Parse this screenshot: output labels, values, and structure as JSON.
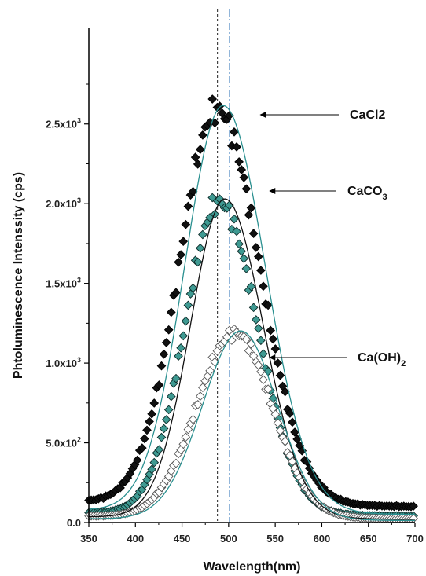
{
  "chart_data": {
    "type": "scatter",
    "xlabel": "Wavelength(nm)",
    "ylabel": "Phtoluminescence Intenssity (cps)",
    "xlim": [
      350,
      700
    ],
    "ylim": [
      0,
      3100
    ],
    "x_ticks": [
      350,
      400,
      450,
      500,
      550,
      600,
      650,
      700
    ],
    "y_ticks": [
      {
        "value": 0,
        "mantissa": "0.0",
        "exp": ""
      },
      {
        "value": 500,
        "mantissa": "5.0x10",
        "exp": "2"
      },
      {
        "value": 1000,
        "mantissa": "1.0x10",
        "exp": "3"
      },
      {
        "value": 1500,
        "mantissa": "1.5x10",
        "exp": "3"
      },
      {
        "value": 2000,
        "mantissa": "2.0x10",
        "exp": "3"
      },
      {
        "value": 2500,
        "mantissa": "2.5x10",
        "exp": "3"
      }
    ],
    "reference_lines": [
      {
        "x": 488,
        "style": "dotted",
        "color": "#333333"
      },
      {
        "x": 501,
        "style": "dash-dot",
        "color": "#2a6fb5"
      }
    ],
    "series": [
      {
        "name": "CaCl2",
        "label_main": "CaCl2",
        "label_sub": "",
        "marker": "diamond-filled",
        "color": "#111111",
        "peak_wavelength": 488,
        "peak_intensity": 2590,
        "baseline_start": 130,
        "baseline_end": 100,
        "width_left": 58,
        "width_right": 64,
        "fit_color": "#2a9090",
        "points": [
          [
            350,
            130
          ],
          [
            360,
            185
          ],
          [
            370,
            260
          ],
          [
            380,
            370
          ],
          [
            390,
            520
          ],
          [
            400,
            700
          ],
          [
            410,
            920
          ],
          [
            420,
            1180
          ],
          [
            430,
            1460
          ],
          [
            440,
            1750
          ],
          [
            450,
            2030
          ],
          [
            460,
            2280
          ],
          [
            470,
            2470
          ],
          [
            480,
            2570
          ],
          [
            488,
            2590
          ],
          [
            495,
            2570
          ],
          [
            500,
            2530
          ],
          [
            510,
            2420
          ],
          [
            520,
            2260
          ],
          [
            530,
            2060
          ],
          [
            540,
            1840
          ],
          [
            550,
            1610
          ],
          [
            560,
            1380
          ],
          [
            570,
            1160
          ],
          [
            580,
            960
          ],
          [
            590,
            780
          ],
          [
            600,
            620
          ],
          [
            610,
            490
          ],
          [
            620,
            380
          ],
          [
            630,
            300
          ],
          [
            640,
            230
          ],
          [
            650,
            180
          ],
          [
            660,
            150
          ],
          [
            670,
            125
          ],
          [
            680,
            115
          ],
          [
            690,
            105
          ],
          [
            700,
            100
          ]
        ]
      },
      {
        "name": "CaCO3",
        "label_main": "CaCO",
        "label_sub": "3",
        "marker": "diamond-teal",
        "color": "#2f8a82",
        "peak_wavelength": 490,
        "peak_intensity": 2010,
        "baseline_start": 60,
        "baseline_end": 40,
        "width_left": 52,
        "width_right": 58,
        "fit_color": "#111111",
        "points": [
          [
            350,
            60
          ],
          [
            360,
            95
          ],
          [
            370,
            150
          ],
          [
            380,
            225
          ],
          [
            390,
            330
          ],
          [
            400,
            470
          ],
          [
            410,
            640
          ],
          [
            420,
            840
          ],
          [
            430,
            1070
          ],
          [
            440,
            1300
          ],
          [
            450,
            1530
          ],
          [
            460,
            1740
          ],
          [
            470,
            1900
          ],
          [
            480,
            1990
          ],
          [
            490,
            2010
          ],
          [
            500,
            1990
          ],
          [
            510,
            1920
          ],
          [
            520,
            1800
          ],
          [
            530,
            1640
          ],
          [
            540,
            1460
          ],
          [
            550,
            1270
          ],
          [
            560,
            1080
          ],
          [
            570,
            900
          ],
          [
            580,
            730
          ],
          [
            590,
            580
          ],
          [
            600,
            450
          ],
          [
            610,
            340
          ],
          [
            620,
            250
          ],
          [
            630,
            185
          ],
          [
            640,
            135
          ],
          [
            650,
            100
          ],
          [
            660,
            78
          ],
          [
            670,
            62
          ],
          [
            680,
            52
          ],
          [
            690,
            45
          ],
          [
            700,
            40
          ]
        ]
      },
      {
        "name": "Ca(OH)2",
        "label_main": "Ca(OH)",
        "label_sub": "2",
        "marker": "diamond-open",
        "color": "#555555",
        "peak_wavelength": 507,
        "peak_intensity": 1190,
        "baseline_start": 40,
        "baseline_end": 25,
        "width_left": 58,
        "width_right": 56,
        "fit_color": "#2a9090",
        "points": [
          [
            350,
            40
          ],
          [
            360,
            55
          ],
          [
            370,
            80
          ],
          [
            380,
            115
          ],
          [
            390,
            165
          ],
          [
            400,
            235
          ],
          [
            410,
            320
          ],
          [
            420,
            430
          ],
          [
            430,
            555
          ],
          [
            440,
            690
          ],
          [
            450,
            830
          ],
          [
            460,
            960
          ],
          [
            470,
            1070
          ],
          [
            480,
            1140
          ],
          [
            490,
            1180
          ],
          [
            500,
            1190
          ],
          [
            507,
            1190
          ],
          [
            515,
            1170
          ],
          [
            525,
            1120
          ],
          [
            535,
            1040
          ],
          [
            545,
            940
          ],
          [
            555,
            830
          ],
          [
            565,
            710
          ],
          [
            575,
            590
          ],
          [
            585,
            480
          ],
          [
            595,
            380
          ],
          [
            605,
            295
          ],
          [
            615,
            225
          ],
          [
            625,
            170
          ],
          [
            635,
            125
          ],
          [
            645,
            95
          ],
          [
            655,
            70
          ],
          [
            665,
            55
          ],
          [
            675,
            42
          ],
          [
            685,
            35
          ],
          [
            700,
            25
          ]
        ]
      }
    ]
  }
}
